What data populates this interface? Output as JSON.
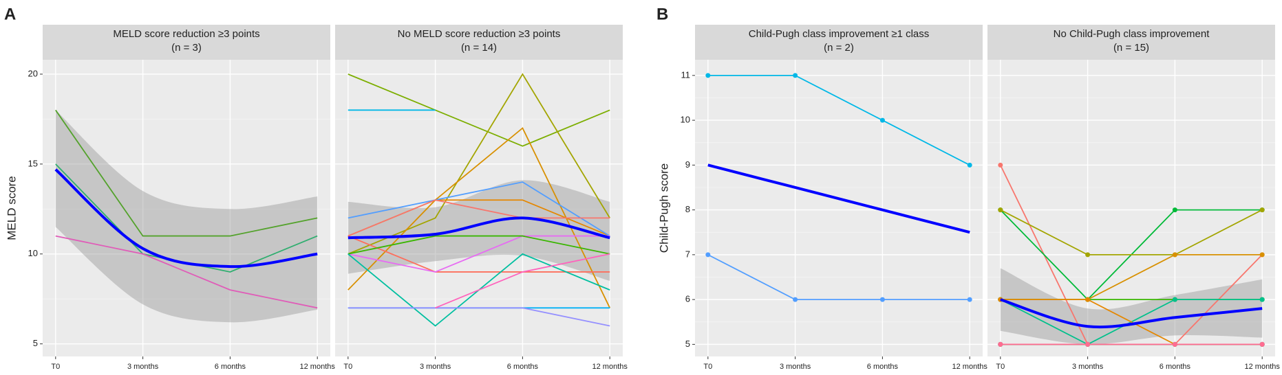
{
  "chart_data": [
    {
      "type": "line",
      "panel": "A",
      "ylabel": "MELD score",
      "title": "MELD score reduction ≥3 points",
      "subtitle": "(n = 3)",
      "categories": [
        "T0",
        "3 months",
        "6 months",
        "12 months"
      ],
      "ylim": [
        4.3,
        20.8
      ],
      "yticks": [
        5,
        10,
        15,
        20
      ],
      "grid": true,
      "markers": false,
      "series": [
        {
          "color": "#53a22b",
          "values": [
            18,
            11,
            11,
            12
          ]
        },
        {
          "color": "#2fae6f",
          "values": [
            15,
            10,
            9,
            11
          ]
        },
        {
          "color": "#e05cb8",
          "values": [
            11,
            10,
            8,
            7
          ]
        }
      ],
      "fit": {
        "color": "#0000ff",
        "values": [
          14.7,
          10.3,
          9.3,
          10
        ],
        "lower": [
          11.5,
          7.2,
          6.2,
          6.9
        ],
        "upper": [
          18,
          13.5,
          12.5,
          13.2
        ]
      }
    },
    {
      "type": "line",
      "title": "No MELD score reduction ≥3 points",
      "subtitle": "(n = 14)",
      "categories": [
        "T0",
        "3 months",
        "6 months",
        "12 months"
      ],
      "ylim": [
        4.3,
        20.8
      ],
      "yticks": [
        5,
        10,
        15,
        20
      ],
      "grid": true,
      "markers": false,
      "series": [
        {
          "color": "#7cae00",
          "values": [
            20,
            18,
            16,
            18
          ]
        },
        {
          "color": "#00b8e7",
          "values": [
            18,
            18,
            null,
            null
          ]
        },
        {
          "color": "#a3a500",
          "values": [
            10,
            12,
            20,
            12
          ]
        },
        {
          "color": "#d89000",
          "values": [
            8,
            13,
            17,
            7
          ]
        },
        {
          "color": "#e58700",
          "values": [
            11,
            13,
            13,
            11
          ]
        },
        {
          "color": "#529eff",
          "values": [
            12,
            13,
            14,
            11
          ]
        },
        {
          "color": "#f8766d",
          "values": [
            11,
            13,
            12,
            12
          ]
        },
        {
          "color": "#fd6f5d",
          "values": [
            11,
            9,
            9,
            9
          ]
        },
        {
          "color": "#e76bf3",
          "values": [
            10,
            9,
            11,
            11
          ]
        },
        {
          "color": "#39b600",
          "values": [
            10,
            11,
            11,
            10
          ]
        },
        {
          "color": "#00bfa0",
          "values": [
            10,
            6,
            10,
            8
          ]
        },
        {
          "color": "#00b0f6",
          "values": [
            7,
            7,
            7,
            7
          ]
        },
        {
          "color": "#9590ff",
          "values": [
            7,
            7,
            7,
            6
          ]
        },
        {
          "color": "#ff62bc",
          "values": [
            null,
            7,
            9,
            10
          ]
        }
      ],
      "fit": {
        "color": "#0000ff",
        "values": [
          10.9,
          11.1,
          12,
          10.9
        ],
        "lower": [
          8.9,
          9.6,
          9.9,
          8.5
        ],
        "upper": [
          12.9,
          12.6,
          14.1,
          12.9
        ]
      }
    },
    {
      "type": "line",
      "panel": "B",
      "ylabel": "Child-Pugh score",
      "title": "Child-Pugh class improvement ≥1 class",
      "subtitle": "(n = 2)",
      "categories": [
        "T0",
        "3 months",
        "6 months",
        "12 months"
      ],
      "ylim": [
        4.73,
        11.35
      ],
      "yticks": [
        5,
        6,
        7,
        8,
        9,
        10,
        11
      ],
      "grid": true,
      "markers": true,
      "series": [
        {
          "color": "#00b8e7",
          "values": [
            11,
            11,
            10,
            9
          ]
        },
        {
          "color": "#529eff",
          "values": [
            7,
            6,
            6,
            6
          ]
        }
      ],
      "fit": {
        "color": "#0000ff",
        "values": [
          9,
          8.5,
          8,
          7.5
        ]
      }
    },
    {
      "type": "line",
      "title": "No Child-Pugh class improvement",
      "subtitle": "(n = 15)",
      "categories": [
        "T0",
        "3 months",
        "6 months",
        "12 months"
      ],
      "ylim": [
        4.73,
        11.35
      ],
      "yticks": [
        5,
        6,
        7,
        8,
        9,
        10,
        11
      ],
      "grid": true,
      "markers": true,
      "series": [
        {
          "color": "#f8766d",
          "values": [
            9,
            5,
            5,
            7
          ]
        },
        {
          "color": "#00ba38",
          "values": [
            8,
            6,
            8,
            8
          ]
        },
        {
          "color": "#a3a500",
          "values": [
            8,
            7,
            7,
            8
          ]
        },
        {
          "color": "#d89000",
          "values": [
            6,
            6,
            7,
            7
          ]
        },
        {
          "color": "#39b600",
          "values": [
            6,
            6,
            6,
            6
          ]
        },
        {
          "color": "#00c08b",
          "values": [
            6,
            5,
            6,
            6
          ]
        },
        {
          "color": "#e58700",
          "values": [
            6,
            6,
            5,
            5
          ]
        },
        {
          "color": "#ff62bc",
          "values": [
            5,
            5,
            5,
            5
          ]
        },
        {
          "color": "#e76bf3",
          "values": [
            5,
            5,
            5,
            5
          ]
        },
        {
          "color": "#fd61d1",
          "values": [
            5,
            5,
            5,
            5
          ]
        },
        {
          "color": "#00bfc4",
          "values": [
            5,
            5,
            5,
            5
          ]
        },
        {
          "color": "#00a9ff",
          "values": [
            5,
            5,
            5,
            5
          ]
        },
        {
          "color": "#9590ff",
          "values": [
            5,
            5,
            5,
            5
          ]
        },
        {
          "color": "#c99800",
          "values": [
            5,
            5,
            5,
            5
          ]
        },
        {
          "color": "#ff6c91",
          "values": [
            5,
            5,
            5,
            5
          ]
        }
      ],
      "fit": {
        "color": "#0000ff",
        "values": [
          6,
          5.4,
          5.6,
          5.8
        ],
        "lower": [
          5.3,
          5.0,
          5.2,
          5.15
        ],
        "upper": [
          6.7,
          5.8,
          6.1,
          6.45
        ]
      }
    }
  ]
}
